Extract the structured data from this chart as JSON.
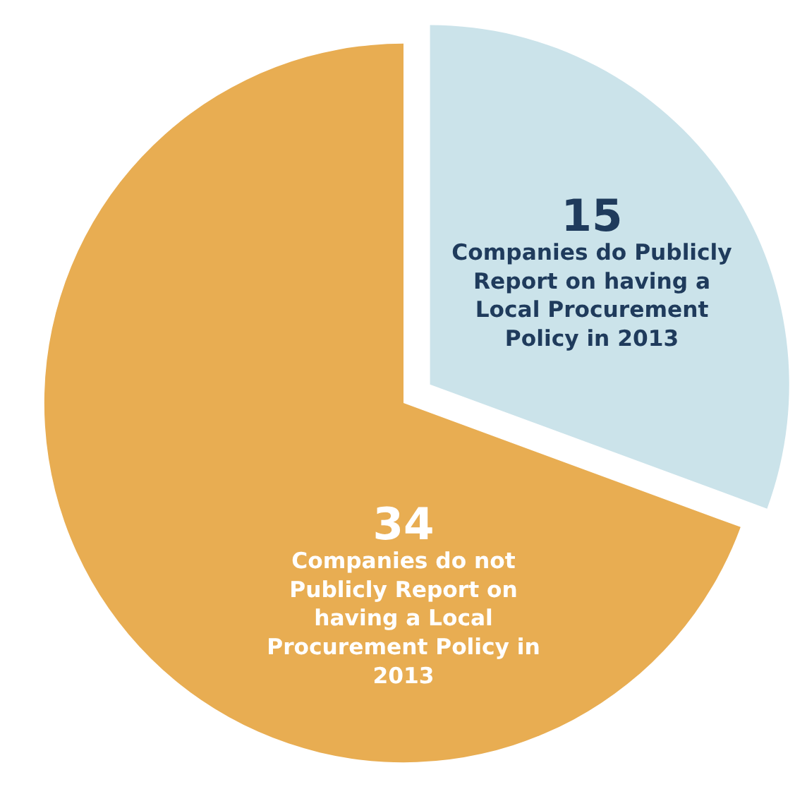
{
  "chart_data": {
    "type": "pie",
    "categories": [
      "Companies do Publicly Report on having a Local Procurement Policy in 2013",
      "Companies do not Publicly Report on having a Local Procurement Policy in 2013"
    ],
    "values": [
      15,
      34
    ],
    "colors": [
      "#cbe3ea",
      "#e8ad52"
    ],
    "data_labels": true
  }
}
